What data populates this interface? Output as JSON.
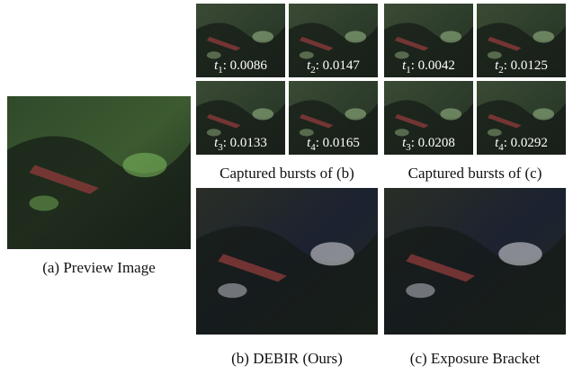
{
  "figure": {
    "preview": {
      "caption": "(a) Preview Image"
    },
    "bursts": [
      {
        "caption": "Captured bursts of (b)",
        "frames": [
          {
            "symbol": "t",
            "index": "1",
            "text": ": 0.0086"
          },
          {
            "symbol": "t",
            "index": "2",
            "text": ": 0.0147"
          },
          {
            "symbol": "t",
            "index": "3",
            "text": ": 0.0133"
          },
          {
            "symbol": "t",
            "index": "4",
            "text": ": 0.0165"
          }
        ]
      },
      {
        "caption": "Captured bursts of (c)",
        "frames": [
          {
            "symbol": "t",
            "index": "1",
            "text": ": 0.0042"
          },
          {
            "symbol": "t",
            "index": "2",
            "text": ": 0.0125"
          },
          {
            "symbol": "t",
            "index": "3",
            "text": ": 0.0208"
          },
          {
            "symbol": "t",
            "index": "4",
            "text": ": 0.0292"
          }
        ]
      }
    ],
    "results": [
      {
        "caption": "(b) DEBIR (Ours)"
      },
      {
        "caption": "(c) Exposure Bracket"
      }
    ]
  }
}
